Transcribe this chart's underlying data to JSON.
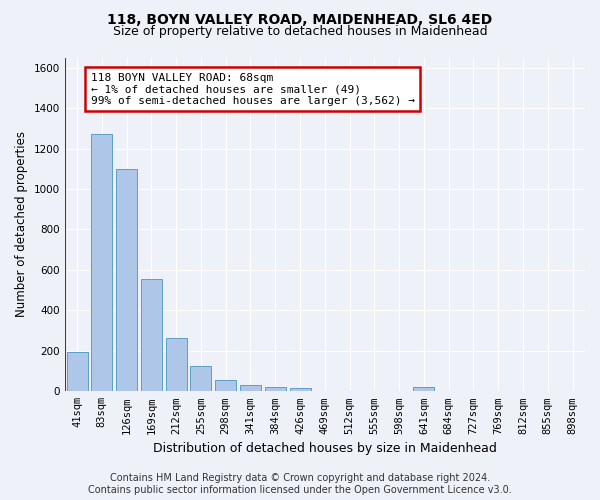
{
  "title1": "118, BOYN VALLEY ROAD, MAIDENHEAD, SL6 4ED",
  "title2": "Size of property relative to detached houses in Maidenhead",
  "xlabel": "Distribution of detached houses by size in Maidenhead",
  "ylabel": "Number of detached properties",
  "categories": [
    "41sqm",
    "83sqm",
    "126sqm",
    "169sqm",
    "212sqm",
    "255sqm",
    "298sqm",
    "341sqm",
    "384sqm",
    "426sqm",
    "469sqm",
    "512sqm",
    "555sqm",
    "598sqm",
    "641sqm",
    "684sqm",
    "727sqm",
    "769sqm",
    "812sqm",
    "855sqm",
    "898sqm"
  ],
  "values": [
    195,
    1270,
    1100,
    555,
    265,
    125,
    58,
    30,
    20,
    15,
    0,
    0,
    0,
    0,
    20,
    0,
    0,
    0,
    0,
    0,
    0
  ],
  "bar_color": "#aec6e8",
  "bar_edge_color": "#5a9fc8",
  "annotation_text": "118 BOYN VALLEY ROAD: 68sqm\n← 1% of detached houses are smaller (49)\n99% of semi-detached houses are larger (3,562) →",
  "annotation_box_color": "#ffffff",
  "annotation_border_color": "#cc0000",
  "red_line_x": -0.47,
  "ylim": [
    0,
    1650
  ],
  "yticks": [
    0,
    200,
    400,
    600,
    800,
    1000,
    1200,
    1400,
    1600
  ],
  "footer1": "Contains HM Land Registry data © Crown copyright and database right 2024.",
  "footer2": "Contains public sector information licensed under the Open Government Licence v3.0.",
  "bg_color": "#eef2f8",
  "plot_bg_color": "#eef2f8",
  "grid_color": "#ffffff",
  "title1_fontsize": 10,
  "title2_fontsize": 9,
  "annotation_fontsize": 8,
  "tick_fontsize": 7.5,
  "ylabel_fontsize": 8.5,
  "xlabel_fontsize": 9,
  "footer_fontsize": 7
}
